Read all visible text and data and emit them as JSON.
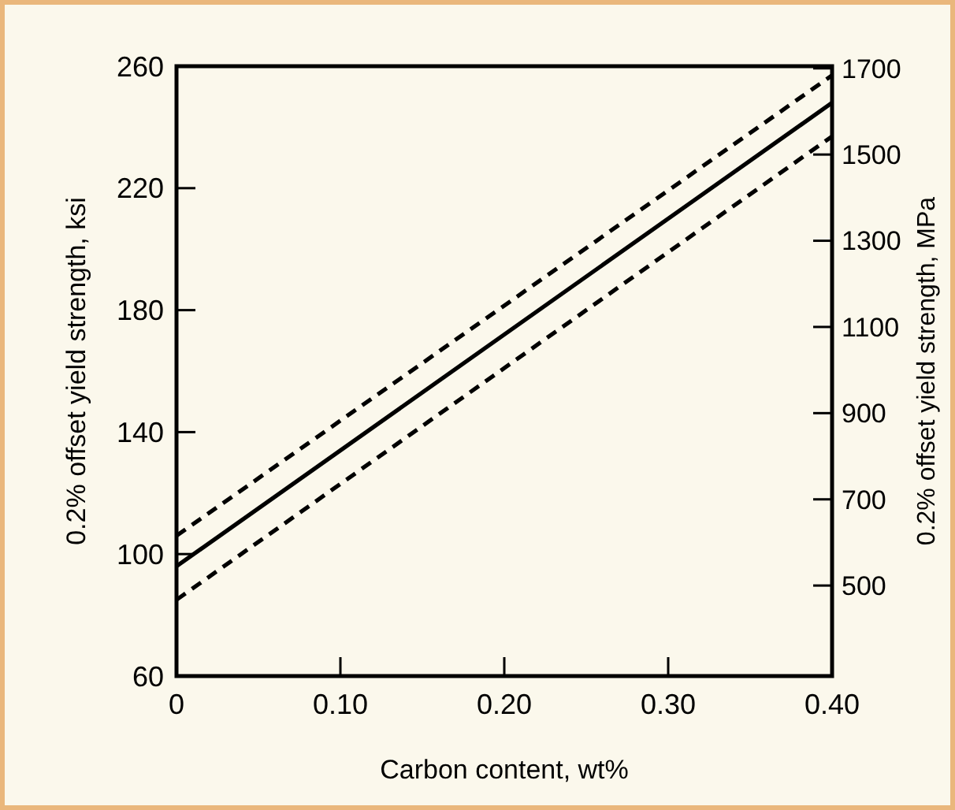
{
  "chart_data": {
    "type": "line",
    "xlabel": "Carbon content, wt%",
    "ylabel": "0.2% offset yield strength, ksi",
    "y2label": "0.2% offset yield strength, MPa",
    "x": [
      0,
      0.4
    ],
    "series": [
      {
        "color": "#000000",
        "line_style": "dashed",
        "values": [
          106,
          257
        ]
      },
      {
        "color": "#000000",
        "line_style": "solid",
        "values": [
          96,
          248
        ]
      },
      {
        "color": "#000000",
        "line_style": "dashed",
        "values": [
          85,
          237
        ]
      }
    ],
    "xlim": [
      0,
      0.4
    ],
    "xticks": [
      {
        "value": 0,
        "label": "0"
      },
      {
        "value": 0.1,
        "label": "0.10"
      },
      {
        "value": 0.2,
        "label": "0.20"
      },
      {
        "value": 0.3,
        "label": "0.30"
      },
      {
        "value": 0.4,
        "label": "0.40"
      }
    ],
    "ylim": [
      60,
      260
    ],
    "yticks": [
      60,
      100,
      140,
      180,
      220,
      260
    ],
    "y2lim": [
      290,
      1705
    ],
    "y2ticks": [
      500,
      700,
      900,
      1100,
      1300,
      1500,
      1700
    ]
  }
}
